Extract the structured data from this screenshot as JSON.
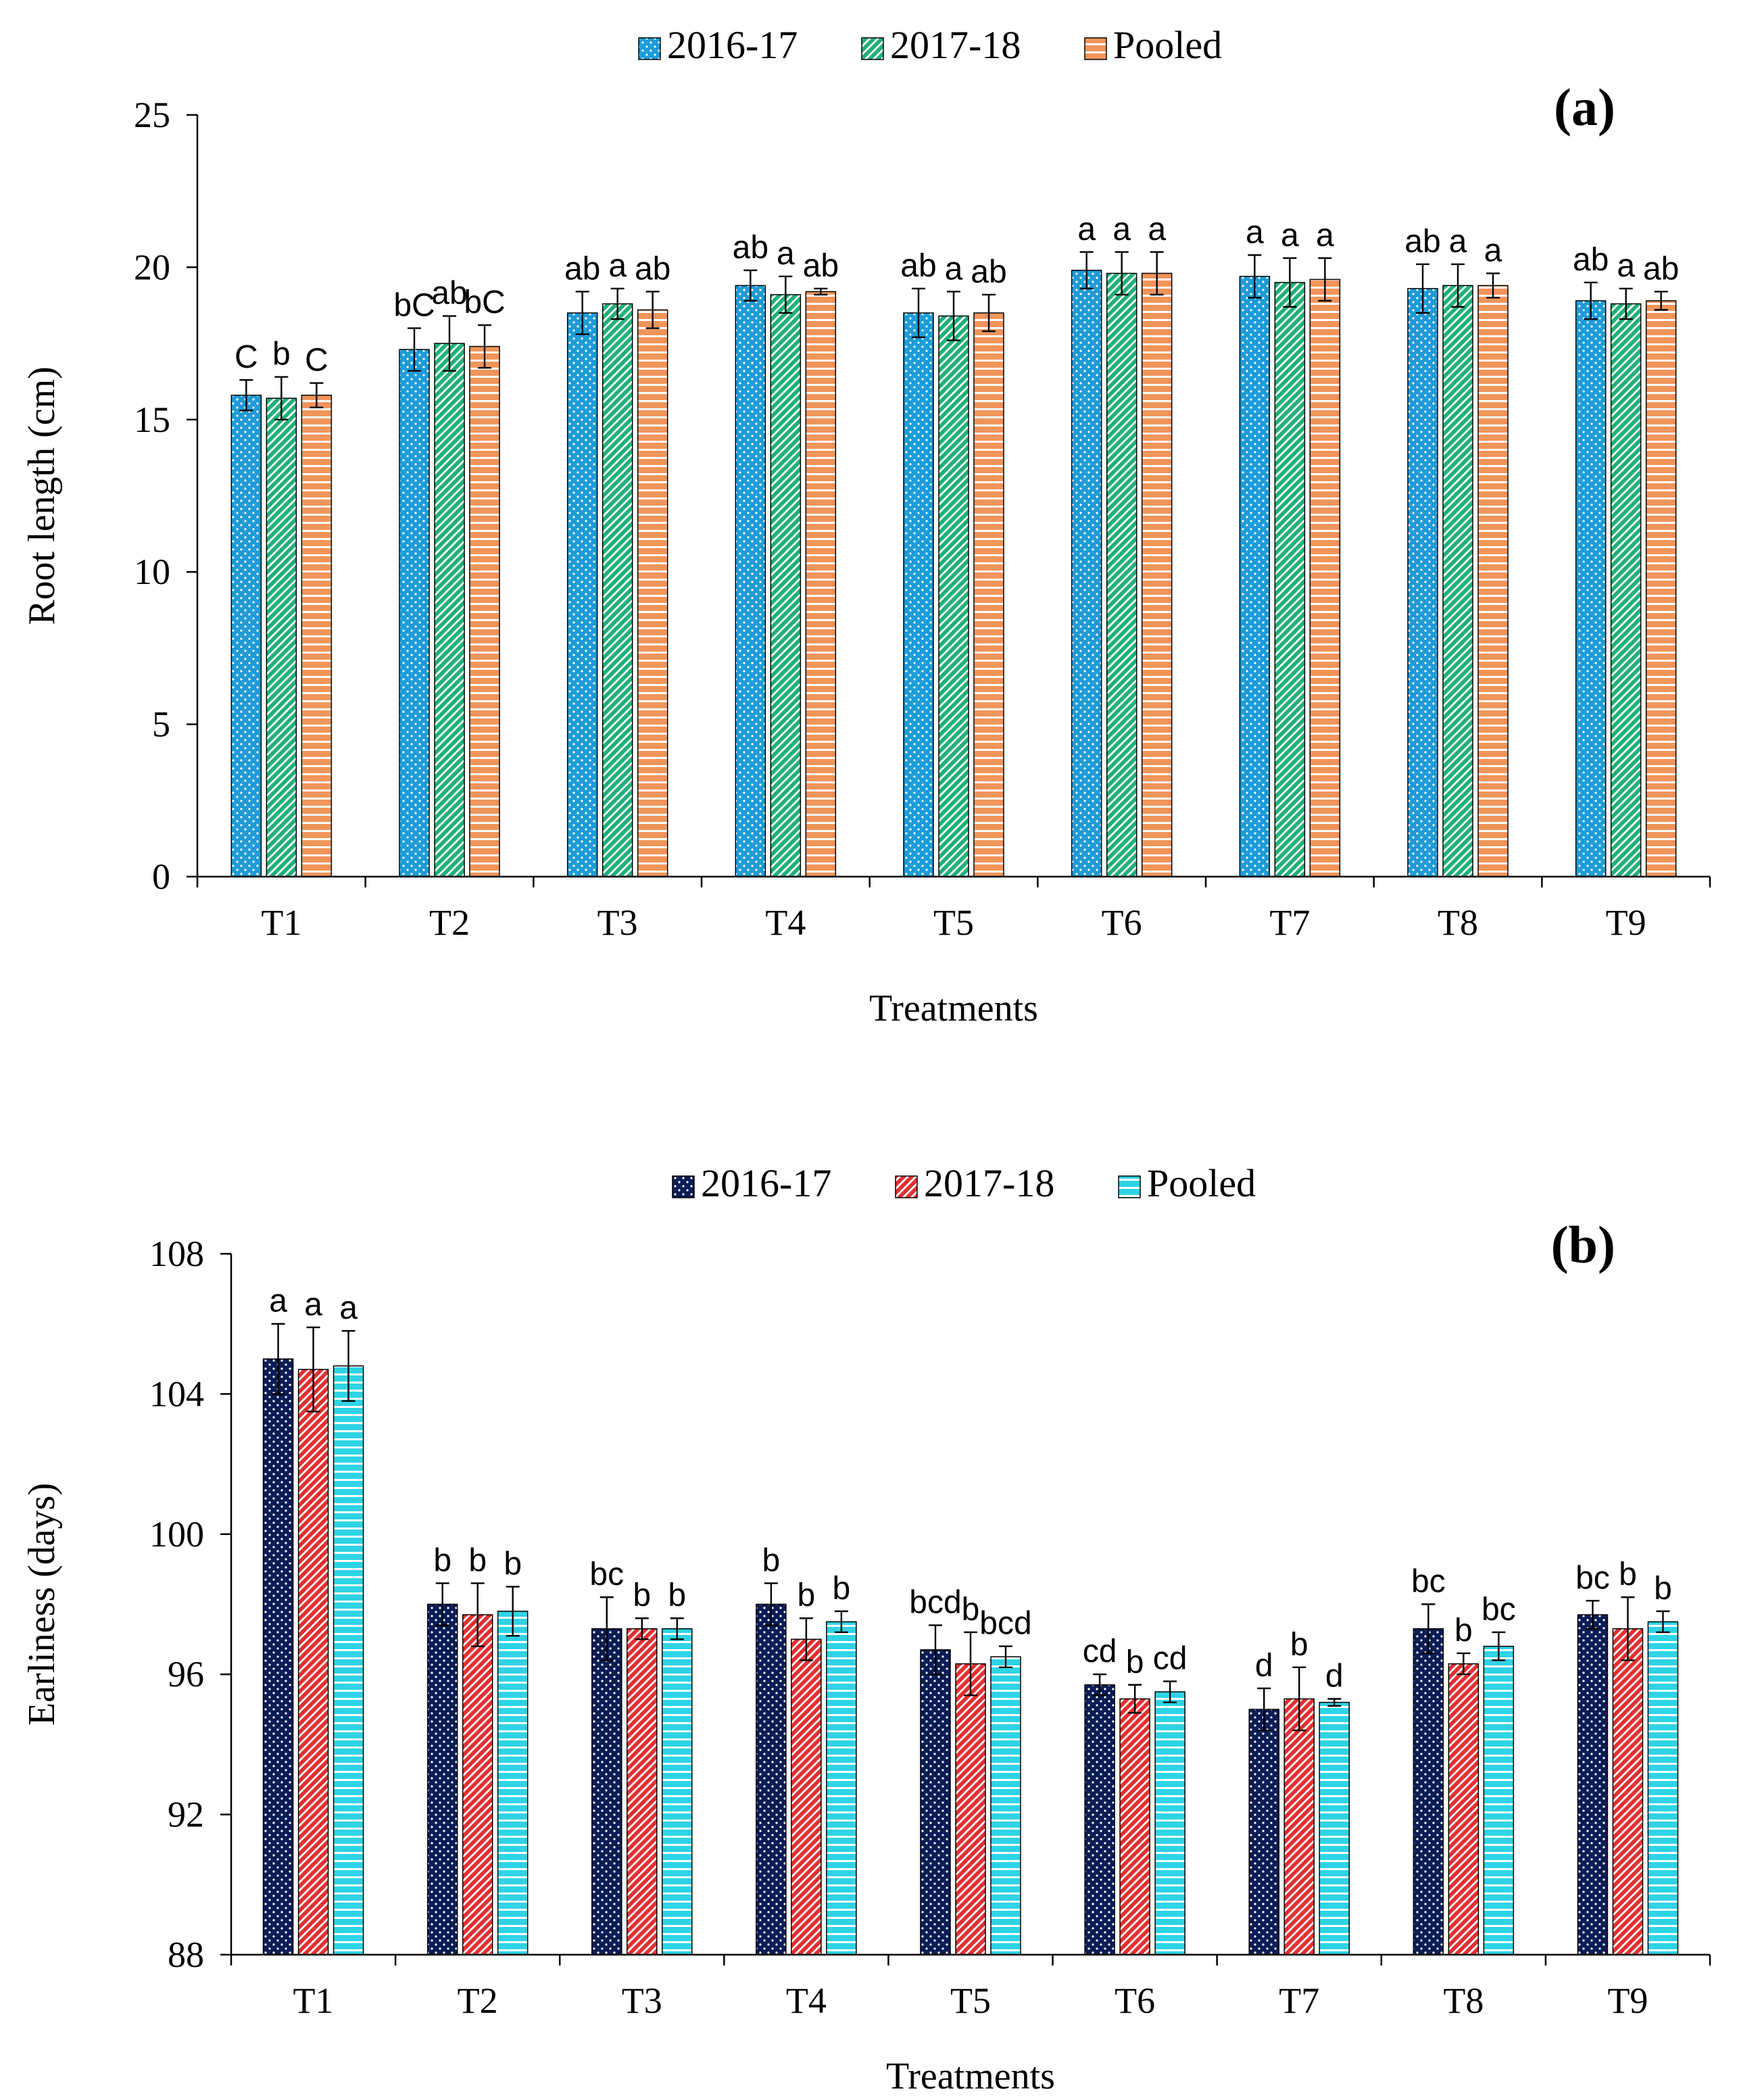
{
  "chart_data": [
    {
      "id": "a",
      "type": "bar",
      "panel_label": "(a)",
      "title": "",
      "xlabel": "Treatments",
      "ylabel": "Root length (cm)",
      "ylim": [
        0,
        25
      ],
      "yticks": [
        0,
        5,
        10,
        15,
        20,
        25
      ],
      "grid": false,
      "legend_position": "top-center",
      "categories": [
        "T1",
        "T2",
        "T3",
        "T4",
        "T5",
        "T6",
        "T7",
        "T8",
        "T9"
      ],
      "series": [
        {
          "name": "2016-17",
          "color": "#1e9bd7",
          "pattern": "dots",
          "values": [
            15.8,
            17.3,
            18.5,
            19.4,
            18.5,
            19.9,
            19.7,
            19.3,
            18.9
          ],
          "errors": [
            0.5,
            0.7,
            0.7,
            0.5,
            0.8,
            0.6,
            0.7,
            0.8,
            0.6
          ],
          "letters": [
            "C",
            "bC",
            "ab",
            "ab",
            "ab",
            "a",
            "a",
            "ab",
            "ab"
          ]
        },
        {
          "name": "2017-18",
          "color": "#1fb07a",
          "pattern": "diagonal",
          "values": [
            15.7,
            17.5,
            18.8,
            19.1,
            18.4,
            19.8,
            19.5,
            19.4,
            18.8
          ],
          "errors": [
            0.7,
            0.9,
            0.5,
            0.6,
            0.8,
            0.7,
            0.8,
            0.7,
            0.5
          ],
          "letters": [
            "b",
            "ab",
            "a",
            "a",
            "a",
            "a",
            "a",
            "a",
            "a"
          ]
        },
        {
          "name": "Pooled",
          "color": "#f0955a",
          "pattern": "horizontal",
          "values": [
            15.8,
            17.4,
            18.6,
            19.2,
            18.5,
            19.8,
            19.6,
            19.4,
            18.9
          ],
          "errors": [
            0.4,
            0.7,
            0.6,
            0.1,
            0.6,
            0.7,
            0.7,
            0.4,
            0.3
          ],
          "letters": [
            "C",
            "bC",
            "ab",
            "ab",
            "ab",
            "a",
            "a",
            "a",
            "ab"
          ]
        }
      ]
    },
    {
      "id": "b",
      "type": "bar",
      "panel_label": "(b)",
      "title": "",
      "xlabel": "Treatments",
      "ylabel": "Earliness (days)",
      "ylim": [
        88,
        108
      ],
      "yticks": [
        88,
        92,
        96,
        100,
        104,
        108
      ],
      "grid": false,
      "legend_position": "top-center",
      "categories": [
        "T1",
        "T2",
        "T3",
        "T4",
        "T5",
        "T6",
        "T7",
        "T8",
        "T9"
      ],
      "series": [
        {
          "name": "2016-17",
          "color": "#0c1d55",
          "pattern": "dots",
          "values": [
            105.0,
            98.0,
            97.3,
            98.0,
            96.7,
            95.7,
            95.0,
            97.3,
            97.7
          ],
          "errors": [
            1.0,
            0.6,
            0.9,
            0.6,
            0.7,
            0.3,
            0.6,
            0.7,
            0.4
          ],
          "letters": [
            "a",
            "b",
            "bc",
            "b",
            "bcd",
            "cd",
            "d",
            "bc",
            "bc"
          ]
        },
        {
          "name": "2017-18",
          "color": "#e23030",
          "pattern": "diagonal",
          "values": [
            104.7,
            97.7,
            97.3,
            97.0,
            96.3,
            95.3,
            95.3,
            96.3,
            97.3
          ],
          "errors": [
            1.2,
            0.9,
            0.3,
            0.6,
            0.9,
            0.4,
            0.9,
            0.3,
            0.9
          ],
          "letters": [
            "a",
            "b",
            "b",
            "b",
            "b",
            "b",
            "b",
            "b",
            "b"
          ]
        },
        {
          "name": "Pooled",
          "color": "#2ed4e4",
          "pattern": "horizontal",
          "values": [
            104.8,
            97.8,
            97.3,
            97.5,
            96.5,
            95.5,
            95.2,
            96.8,
            97.5
          ],
          "errors": [
            1.0,
            0.7,
            0.3,
            0.3,
            0.3,
            0.3,
            0.1,
            0.4,
            0.3
          ],
          "letters": [
            "a",
            "b",
            "b",
            "b",
            "bcd",
            "cd",
            "d",
            "bc",
            "b"
          ]
        }
      ]
    }
  ]
}
